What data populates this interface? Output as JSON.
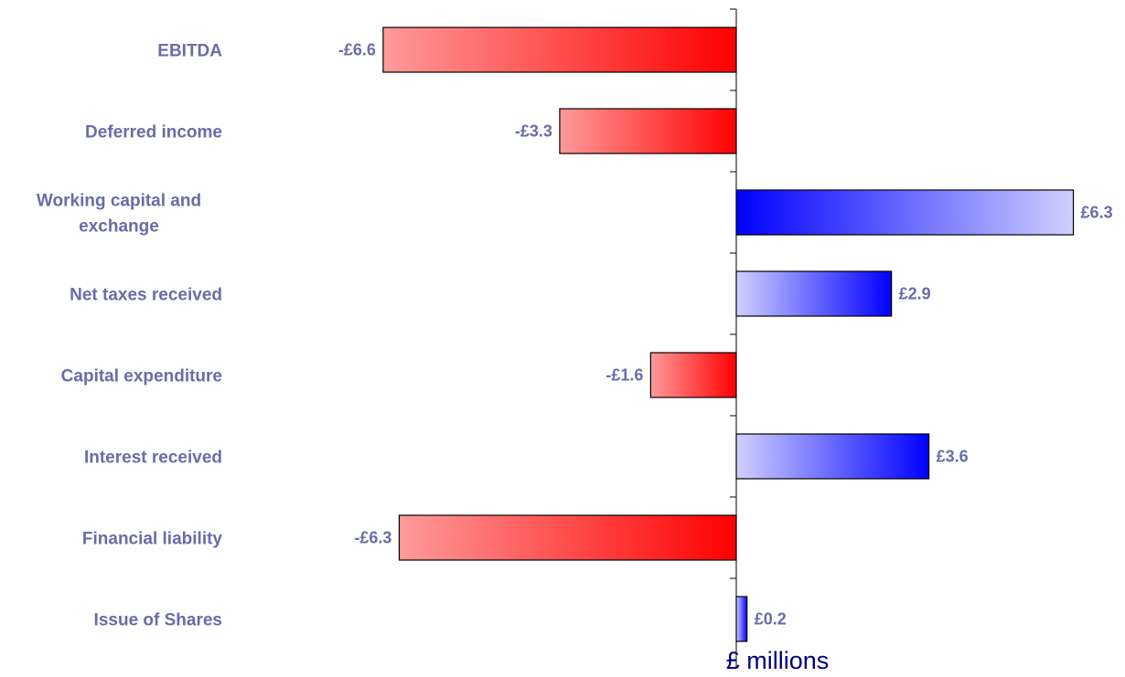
{
  "chart_data": {
    "type": "bar",
    "orientation": "horizontal",
    "categories": [
      "EBITDA",
      "Deferred income",
      "Working capital and exchange",
      "Net taxes received",
      "Capital expenditure",
      "Interest received",
      "Financial liability",
      "Issue of Shares"
    ],
    "category_lines": [
      [
        "EBITDA"
      ],
      [
        "Deferred income"
      ],
      [
        "Working capital and",
        "exchange"
      ],
      [
        "Net taxes received"
      ],
      [
        "Capital expenditure"
      ],
      [
        "Interest received"
      ],
      [
        "Financial liability"
      ],
      [
        "Issue of Shares"
      ]
    ],
    "values": [
      -6.6,
      -3.3,
      6.3,
      2.9,
      -1.6,
      3.6,
      -6.3,
      0.2
    ],
    "data_labels": [
      "-£6.6",
      "-£3.3",
      "£6.3",
      "£2.9",
      "-£1.6",
      "£3.6",
      "-£6.3",
      "£0.2"
    ],
    "xlabel": "£ millions",
    "ylabel": "",
    "title": "",
    "xlim": [
      -6.6,
      6.6
    ],
    "grid": false,
    "legend": "none",
    "colors": {
      "negative_dark": "#ff0000",
      "negative_light": "#ff9a9a",
      "positive_dark": "#0000ff",
      "positive_light": "#d0d0ff",
      "label": "#6b6ba8",
      "axis_title": "#000080",
      "axis": "#000000"
    }
  }
}
